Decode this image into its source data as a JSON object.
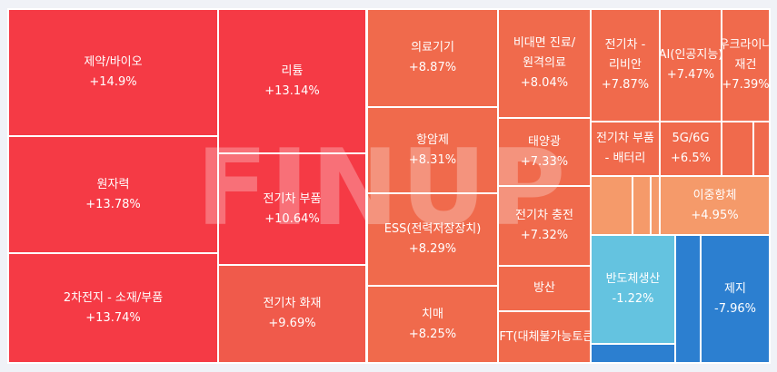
{
  "chart_data": {
    "type": "treemap",
    "watermark": "FINUP",
    "colors": {
      "red_strong": "#f53a45",
      "red_mid": "#f05a4b",
      "orange_red": "#f06a4c",
      "orange": "#f59a6a",
      "sky_blue": "#64c3e0",
      "blue": "#2c7fd0",
      "border": "#ffffff",
      "background": "#f0f2f7"
    },
    "tiles": [
      {
        "label": "제약/바이오",
        "change": "+14.9%",
        "value": 14.9
      },
      {
        "label": "원자력",
        "change": "+13.78%",
        "value": 13.78
      },
      {
        "label": "2차전지 - 소재/부품",
        "change": "+13.74%",
        "value": 13.74
      },
      {
        "label": "리튬",
        "change": "+13.14%",
        "value": 13.14
      },
      {
        "label": "전기차 부품",
        "change": "+10.64%",
        "value": 10.64
      },
      {
        "label": "전기차 화재",
        "change": "+9.69%",
        "value": 9.69
      },
      {
        "label": "의료기기",
        "change": "+8.87%",
        "value": 8.87
      },
      {
        "label": "항암제",
        "change": "+8.31%",
        "value": 8.31
      },
      {
        "label": "ESS(전력저장장치)",
        "change": "+8.29%",
        "value": 8.29
      },
      {
        "label": "치매",
        "change": "+8.25%",
        "value": 8.25
      },
      {
        "label": "비대면 진료/원격의료",
        "change": "+8.04%",
        "value": 8.04
      },
      {
        "label": "태양광",
        "change": "+7.33%",
        "value": 7.33
      },
      {
        "label": "전기차 충전",
        "change": "+7.32%",
        "value": 7.32
      },
      {
        "label": "방산",
        "change": "",
        "value": null
      },
      {
        "label": "NFT(대체불가능토큰)",
        "change": "",
        "value": null
      },
      {
        "label": "전기차 - 리비안",
        "change": "+7.87%",
        "value": 7.87
      },
      {
        "label": "AI(인공지능)",
        "change": "+7.47%",
        "value": 7.47
      },
      {
        "label": "우크라이나 재건",
        "change": "+7.39%",
        "value": 7.39
      },
      {
        "label": "전기차 부품 - 배터리",
        "change": "",
        "value": null
      },
      {
        "label": "5G/6G",
        "change": "+6.5%",
        "value": 6.5
      },
      {
        "label": "",
        "change": "",
        "value": null
      },
      {
        "label": "",
        "change": "",
        "value": null
      },
      {
        "label": "",
        "change": "",
        "value": null
      },
      {
        "label": "",
        "change": "",
        "value": null
      },
      {
        "label": "",
        "change": "",
        "value": null
      },
      {
        "label": "이중항체",
        "change": "+4.95%",
        "value": 4.95
      },
      {
        "label": "반도체생산",
        "change": "-1.22%",
        "value": -1.22
      },
      {
        "label": "",
        "change": "",
        "value": null
      },
      {
        "label": "",
        "change": "",
        "value": null
      },
      {
        "label": "제지",
        "change": "-7.96%",
        "value": -7.96
      }
    ]
  }
}
